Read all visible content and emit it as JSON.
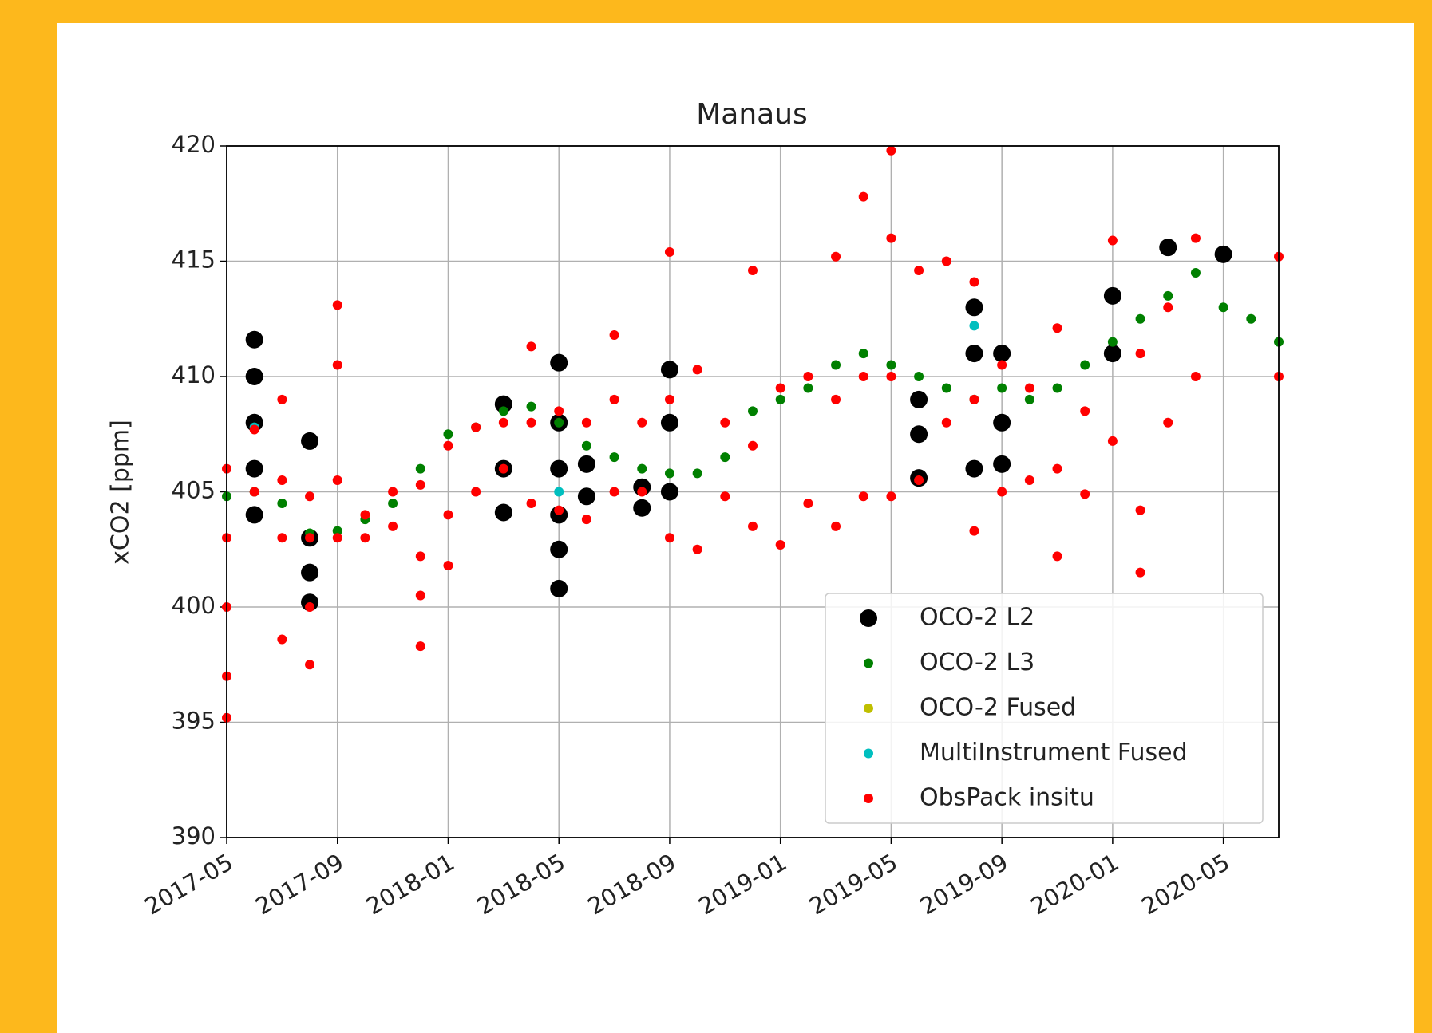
{
  "chart_data": {
    "type": "scatter",
    "title": "Manaus",
    "y_label": "xCO2 [ppm]",
    "xlim": [
      "2017-05",
      "2020-07"
    ],
    "xticks": [
      "2017-05",
      "2017-09",
      "2018-01",
      "2018-05",
      "2018-09",
      "2019-01",
      "2019-05",
      "2019-09",
      "2020-01",
      "2020-05"
    ],
    "ylim": [
      390,
      420
    ],
    "yticks": [
      390,
      395,
      400,
      405,
      410,
      415,
      420
    ],
    "grid": true,
    "legend": "lower right",
    "series": [
      {
        "name": "OCO-2 L2",
        "color": "#000000",
        "size": "large",
        "x": [
          "2017-06",
          "2017-06",
          "2017-06",
          "2017-06",
          "2017-06",
          "2017-08",
          "2017-08",
          "2017-08",
          "2017-08",
          "2018-03",
          "2018-03",
          "2018-03",
          "2018-05",
          "2018-05",
          "2018-05",
          "2018-05",
          "2018-05",
          "2018-05",
          "2018-06",
          "2018-06",
          "2018-08",
          "2018-08",
          "2018-09",
          "2018-09",
          "2018-09",
          "2019-06",
          "2019-06",
          "2019-06",
          "2019-08",
          "2019-08",
          "2019-08",
          "2019-09",
          "2019-09",
          "2019-09",
          "2020-01",
          "2020-01",
          "2020-03",
          "2020-05"
        ],
        "values": [
          404,
          406,
          408,
          410,
          411.6,
          400.2,
          401.5,
          403,
          407.2,
          404.1,
          406,
          408.8,
          400.8,
          402.5,
          404,
          406,
          408,
          410.6,
          404.8,
          406.2,
          404.3,
          405.2,
          405,
          408,
          410.3,
          405.6,
          407.5,
          409,
          406,
          411,
          413,
          406.2,
          408,
          411,
          411,
          413.5,
          415.6,
          415.3
        ]
      },
      {
        "name": "OCO-2 L3",
        "color": "#008000",
        "size": "small",
        "x": [
          "2017-05",
          "2017-06",
          "2017-07",
          "2017-08",
          "2017-09",
          "2017-10",
          "2017-11",
          "2017-12",
          "2018-01",
          "2018-02",
          "2018-03",
          "2018-04",
          "2018-05",
          "2018-06",
          "2018-07",
          "2018-08",
          "2018-09",
          "2018-10",
          "2018-11",
          "2018-12",
          "2019-01",
          "2019-02",
          "2019-03",
          "2019-04",
          "2019-05",
          "2019-06",
          "2019-07",
          "2019-08",
          "2019-09",
          "2019-10",
          "2019-11",
          "2019-12",
          "2020-01",
          "2020-02",
          "2020-03",
          "2020-04",
          "2020-05",
          "2020-06",
          "2020-07"
        ],
        "values": [
          404.8,
          405,
          404.5,
          403.2,
          403.3,
          403.8,
          404.5,
          406,
          407.5,
          407.8,
          408.5,
          408.7,
          408,
          407,
          406.5,
          406,
          405.8,
          405.8,
          406.5,
          408.5,
          409,
          409.5,
          410.5,
          411,
          410.5,
          410,
          409.5,
          409,
          409.5,
          409,
          409.5,
          410.5,
          411.5,
          412.5,
          413.5,
          414.5,
          413,
          412.5,
          411.5
        ]
      },
      {
        "name": "OCO-2 Fused",
        "color": "#bfbf00",
        "size": "small",
        "x": [],
        "values": []
      },
      {
        "name": "MultiInstrument Fused",
        "color": "#00bfbf",
        "size": "small",
        "x": [
          "2017-06",
          "2018-05",
          "2019-08"
        ],
        "values": [
          407.8,
          405,
          412.2
        ]
      },
      {
        "name": "ObsPack insitu",
        "color": "#ff0000",
        "size": "small",
        "x": [
          "2017-05",
          "2017-05",
          "2017-05",
          "2017-05",
          "2017-05",
          "2017-06",
          "2017-06",
          "2017-07",
          "2017-07",
          "2017-07",
          "2017-07",
          "2017-08",
          "2017-08",
          "2017-08",
          "2017-08",
          "2017-09",
          "2017-09",
          "2017-09",
          "2017-09",
          "2017-10",
          "2017-10",
          "2017-11",
          "2017-11",
          "2017-12",
          "2017-12",
          "2017-12",
          "2017-12",
          "2018-01",
          "2018-01",
          "2018-01",
          "2018-02",
          "2018-02",
          "2018-03",
          "2018-03",
          "2018-04",
          "2018-04",
          "2018-04",
          "2018-05",
          "2018-05",
          "2018-06",
          "2018-06",
          "2018-07",
          "2018-07",
          "2018-07",
          "2018-08",
          "2018-08",
          "2018-09",
          "2018-09",
          "2018-09",
          "2018-10",
          "2018-10",
          "2018-11",
          "2018-11",
          "2018-12",
          "2018-12",
          "2018-12",
          "2019-01",
          "2019-01",
          "2019-02",
          "2019-02",
          "2019-03",
          "2019-03",
          "2019-03",
          "2019-04",
          "2019-04",
          "2019-04",
          "2019-05",
          "2019-05",
          "2019-05",
          "2019-05",
          "2019-06",
          "2019-06",
          "2019-07",
          "2019-07",
          "2019-08",
          "2019-08",
          "2019-08",
          "2019-09",
          "2019-09",
          "2019-10",
          "2019-10",
          "2019-11",
          "2019-11",
          "2019-11",
          "2019-12",
          "2019-12",
          "2020-01",
          "2020-01",
          "2020-02",
          "2020-02",
          "2020-02",
          "2020-03",
          "2020-03",
          "2020-04",
          "2020-04",
          "2020-07",
          "2020-07"
        ],
        "values": [
          395.2,
          397,
          400,
          403,
          406,
          405,
          407.7,
          398.6,
          403,
          405.5,
          409,
          397.5,
          400,
          403,
          404.8,
          403,
          405.5,
          410.5,
          413.1,
          403,
          404,
          403.5,
          405,
          398.3,
          400.5,
          402.2,
          405.3,
          401.8,
          404,
          407,
          405,
          407.8,
          406,
          408,
          404.5,
          408,
          411.3,
          404.2,
          408.5,
          403.8,
          408,
          405,
          409,
          411.8,
          405,
          408,
          403,
          409,
          415.4,
          402.5,
          410.3,
          404.8,
          408,
          403.5,
          407,
          414.6,
          402.7,
          409.5,
          404.5,
          410,
          403.5,
          409,
          415.2,
          404.8,
          410,
          417.8,
          404.8,
          410,
          416,
          419.8,
          405.5,
          414.6,
          408,
          415,
          403.3,
          409,
          414.1,
          405,
          410.5,
          405.5,
          409.5,
          402.2,
          406,
          412.1,
          404.9,
          408.5,
          407.2,
          415.9,
          401.5,
          404.2,
          411,
          408,
          413,
          410,
          416,
          410,
          415.2
        ]
      }
    ]
  }
}
